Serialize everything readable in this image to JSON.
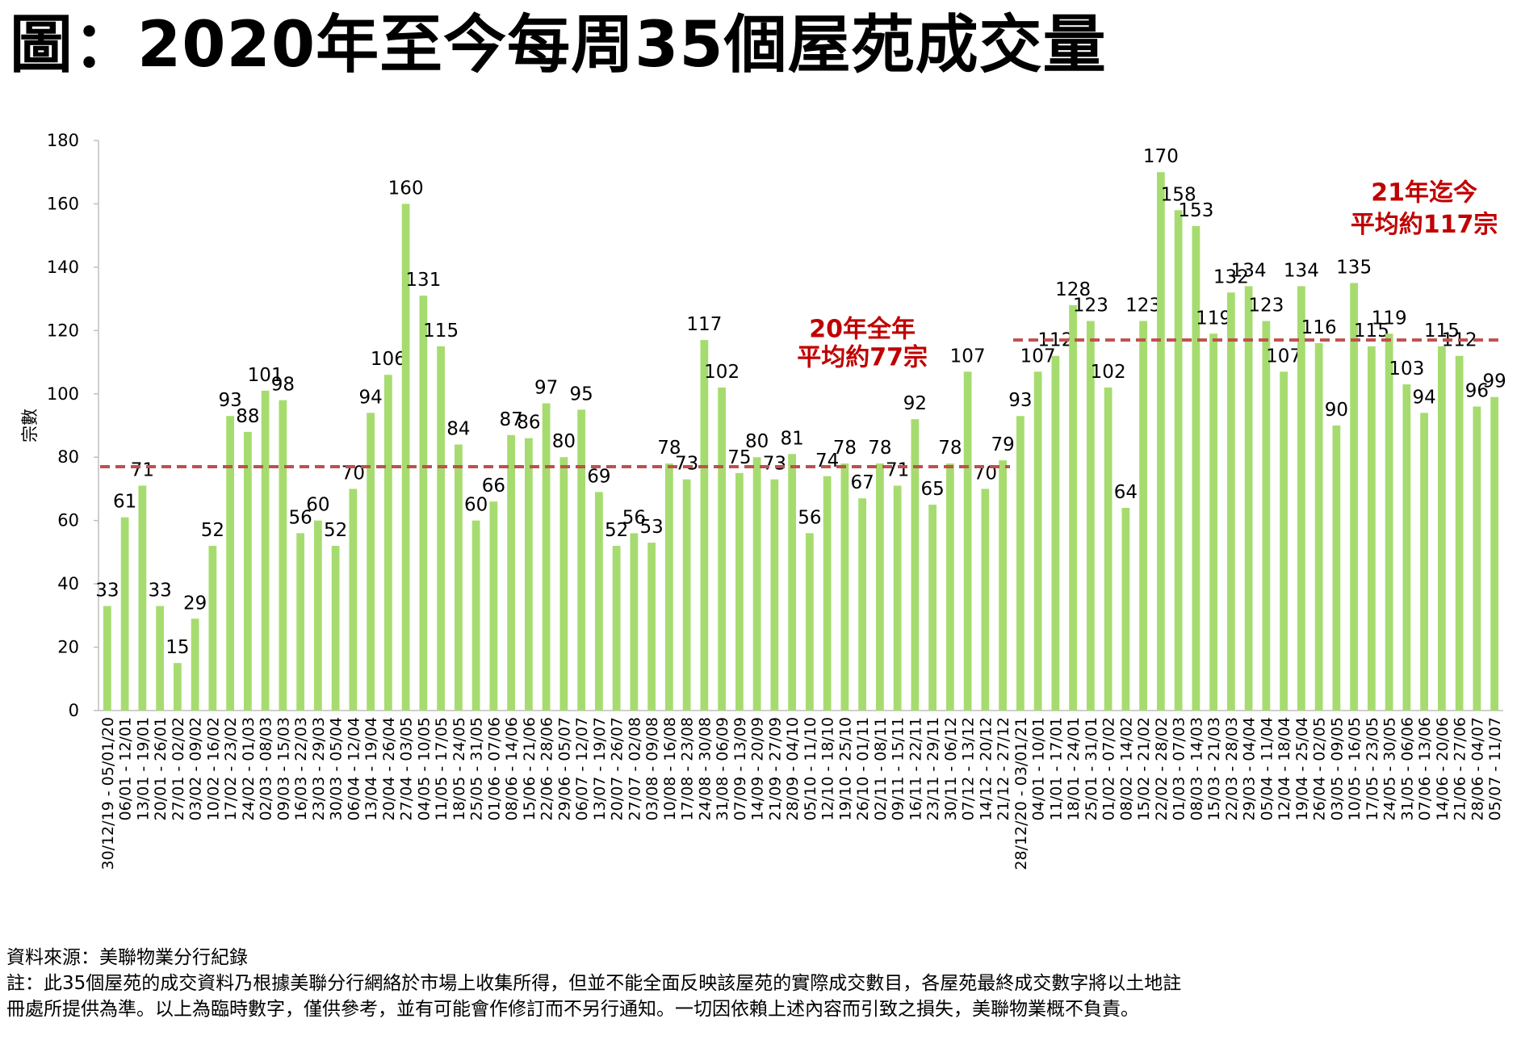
{
  "title": "圖：2020年至今每周35個屋苑成交量",
  "chart_data": {
    "type": "bar",
    "ylabel": "宗數",
    "ylim": [
      0,
      180
    ],
    "yticks": [
      0,
      20,
      40,
      60,
      80,
      100,
      120,
      140,
      160,
      180
    ],
    "grid": false,
    "colors": {
      "bar": "#a6dc6f",
      "average_line": "#c0504d",
      "annotation": "#c00000"
    },
    "categories": [
      "30/12/19 - 05/01/20",
      "06/01 - 12/01",
      "13/01 - 19/01",
      "20/01 - 26/01",
      "27/01 - 02/02",
      "03/02 - 09/02",
      "10/02 - 16/02",
      "17/02 - 23/02",
      "24/02 - 01/03",
      "02/03 - 08/03",
      "09/03 - 15/03",
      "16/03 - 22/03",
      "23/03 - 29/03",
      "30/03 - 05/04",
      "06/04 - 12/04",
      "13/04 - 19/04",
      "20/04 - 26/04",
      "27/04 - 03/05",
      "04/05 - 10/05",
      "11/05 - 17/05",
      "18/05 - 24/05",
      "25/05 - 31/05",
      "01/06 - 07/06",
      "08/06 - 14/06",
      "15/06 - 21/06",
      "22/06 - 28/06",
      "29/06 - 05/07",
      "06/07 - 12/07",
      "13/07 - 19/07",
      "20/07 - 26/07",
      "27/07 - 02/08",
      "03/08 - 09/08",
      "10/08 - 16/08",
      "17/08 - 23/08",
      "24/08 - 30/08",
      "31/08 - 06/09",
      "07/09 - 13/09",
      "14/09 - 20/09",
      "21/09 - 27/09",
      "28/09 - 04/10",
      "05/10 - 11/10",
      "12/10 - 18/10",
      "19/10 - 25/10",
      "26/10 - 01/11",
      "02/11 - 08/11",
      "09/11 - 15/11",
      "16/11 - 22/11",
      "23/11 - 29/11",
      "30/11 - 06/12",
      "07/12 - 13/12",
      "14/12 - 20/12",
      "21/12 - 27/12",
      "28/12/20 - 03/01/21",
      "04/01 - 10/01",
      "11/01 - 17/01",
      "18/01 - 24/01",
      "25/01 - 31/01",
      "01/02 - 07/02",
      "08/02 - 14/02",
      "15/02 - 21/02",
      "22/02 - 28/02",
      "01/03 - 07/03",
      "08/03 - 14/03",
      "15/03 - 21/03",
      "22/03 - 28/03",
      "29/03 - 04/04",
      "05/04 - 11/04",
      "12/04 - 18/04",
      "19/04 - 25/04",
      "26/04 - 02/05",
      "03/05 - 09/05",
      "10/05 - 16/05",
      "17/05 - 23/05",
      "24/05 - 30/05",
      "31/05 - 06/06",
      "07/06 - 13/06",
      "14/06 - 20/06",
      "21/06 - 27/06",
      "28/06 - 04/07",
      "05/07 - 11/07"
    ],
    "values": [
      33,
      61,
      71,
      33,
      15,
      29,
      52,
      93,
      88,
      101,
      98,
      56,
      60,
      52,
      70,
      94,
      106,
      160,
      131,
      115,
      84,
      60,
      66,
      87,
      86,
      97,
      80,
      95,
      69,
      52,
      56,
      53,
      78,
      73,
      117,
      102,
      75,
      80,
      73,
      81,
      56,
      74,
      78,
      67,
      78,
      71,
      92,
      65,
      78,
      107,
      70,
      79,
      93,
      107,
      112,
      128,
      123,
      102,
      64,
      123,
      170,
      158,
      153,
      119,
      132,
      134,
      123,
      107,
      134,
      116,
      90,
      135,
      115,
      119,
      103,
      94,
      115,
      112,
      96,
      99
    ],
    "averages": [
      {
        "value": 77,
        "from_index": 0,
        "to_index": 51
      },
      {
        "value": 117,
        "from_index": 52,
        "to_index": 79
      }
    ],
    "annotations": [
      {
        "line1": "20年全年",
        "line2": "平均約77宗"
      },
      {
        "line1": "21年迄今",
        "line2": "平均約117宗"
      }
    ]
  },
  "footer": {
    "source": "資料來源：美聯物業分行紀錄",
    "note_line1": "註：此35個屋苑的成交資料乃根據美聯分行網絡於市場上收集所得，但並不能全面反映該屋苑的實際成交數目，各屋苑最終成交數字將以土地註",
    "note_line2": "冊處所提供為準。以上為臨時數字，僅供參考，並有可能會作修訂而不另行通知。一切因依賴上述內容而引致之損失，美聯物業概不負責。"
  }
}
